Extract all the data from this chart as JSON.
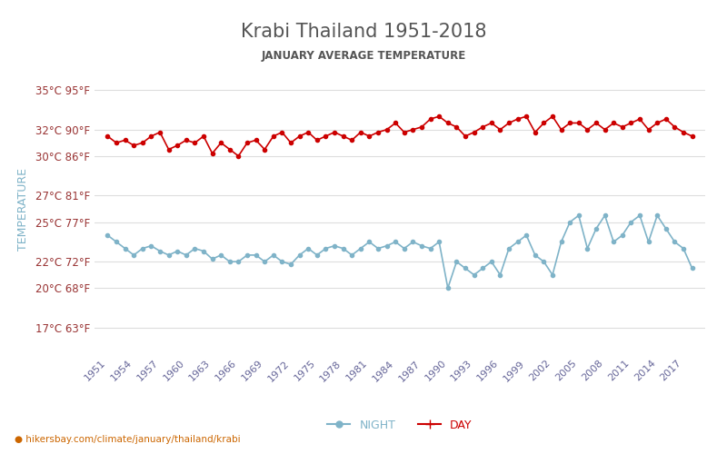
{
  "title": "Krabi Thailand 1951-2018",
  "subtitle": "JANUARY AVERAGE TEMPERATURE",
  "ylabel": "TEMPERATURE",
  "url_text": "hikersbay.com/climate/january/thailand/krabi",
  "yticks_c": [
    17,
    20,
    22,
    25,
    27,
    30,
    32,
    35
  ],
  "yticks_f": [
    63,
    68,
    72,
    77,
    81,
    86,
    90,
    95
  ],
  "years": [
    1951,
    1952,
    1953,
    1954,
    1955,
    1956,
    1957,
    1958,
    1959,
    1960,
    1961,
    1962,
    1963,
    1964,
    1965,
    1966,
    1967,
    1968,
    1969,
    1970,
    1971,
    1972,
    1973,
    1974,
    1975,
    1976,
    1977,
    1978,
    1979,
    1980,
    1981,
    1982,
    1983,
    1984,
    1985,
    1986,
    1987,
    1988,
    1989,
    1990,
    1991,
    1992,
    1993,
    1994,
    1995,
    1996,
    1997,
    1998,
    1999,
    2000,
    2001,
    2002,
    2003,
    2004,
    2005,
    2006,
    2007,
    2008,
    2009,
    2010,
    2011,
    2012,
    2013,
    2014,
    2015,
    2016,
    2017,
    2018
  ],
  "day_temps": [
    31.5,
    31.0,
    31.2,
    30.8,
    31.0,
    31.5,
    31.8,
    30.5,
    30.8,
    31.2,
    31.0,
    31.5,
    30.2,
    31.0,
    30.5,
    30.0,
    31.0,
    31.2,
    30.5,
    31.5,
    31.8,
    31.0,
    31.5,
    31.8,
    31.2,
    31.5,
    31.8,
    31.5,
    31.2,
    31.8,
    31.5,
    31.8,
    32.0,
    32.5,
    31.8,
    32.0,
    32.2,
    32.8,
    33.0,
    32.5,
    32.2,
    31.5,
    31.8,
    32.2,
    32.5,
    32.0,
    32.5,
    32.8,
    33.0,
    31.8,
    32.5,
    33.0,
    32.0,
    32.5,
    32.5,
    32.0,
    32.5,
    32.0,
    32.5,
    32.2,
    32.5,
    32.8,
    32.0,
    32.5,
    32.8,
    32.2,
    31.8,
    31.5
  ],
  "night_temps": [
    24.0,
    23.5,
    23.0,
    22.5,
    23.0,
    23.2,
    22.8,
    22.5,
    22.8,
    22.5,
    23.0,
    22.8,
    22.2,
    22.5,
    22.0,
    22.0,
    22.5,
    22.5,
    22.0,
    22.5,
    22.0,
    21.8,
    22.5,
    23.0,
    22.5,
    23.0,
    23.2,
    23.0,
    22.5,
    23.0,
    23.5,
    23.0,
    23.2,
    23.5,
    23.0,
    23.5,
    23.2,
    23.0,
    23.5,
    20.0,
    22.0,
    21.5,
    21.0,
    21.5,
    22.0,
    21.0,
    23.0,
    23.5,
    24.0,
    22.5,
    22.0,
    21.0,
    23.5,
    25.0,
    25.5,
    23.0,
    24.5,
    25.5,
    23.5,
    24.0,
    25.0,
    25.5,
    23.5,
    25.5,
    24.5,
    23.5,
    23.0,
    21.5
  ],
  "day_color": "#cc0000",
  "night_color": "#7fb3c8",
  "bg_color": "#ffffff",
  "grid_color": "#dddddd",
  "title_color": "#555555",
  "subtitle_color": "#555555",
  "ylabel_color": "#7fb3c8",
  "yticklabel_color": "#993333",
  "xticklabel_color": "#666699",
  "url_color": "#cc6600",
  "legend_night_color": "#7fb3c8",
  "legend_day_color": "#cc0000"
}
